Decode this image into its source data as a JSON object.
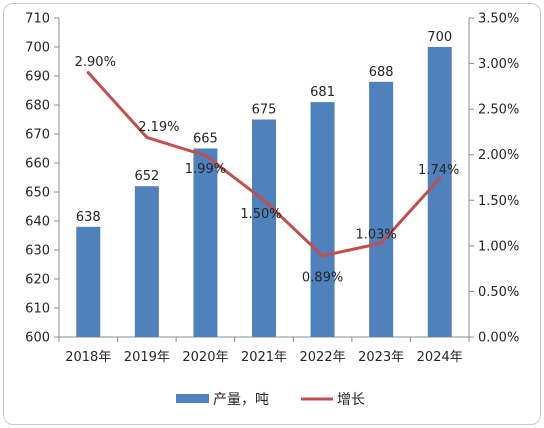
{
  "chart_data": {
    "type": "bar+line",
    "categories": [
      "2018年",
      "2019年",
      "2020年",
      "2021年",
      "2022年",
      "2023年",
      "2024年"
    ],
    "series": [
      {
        "name": "产量，吨",
        "type": "bar",
        "axis": "left",
        "values": [
          638,
          652,
          665,
          675,
          681,
          688,
          700
        ],
        "labels": [
          "638",
          "652",
          "665",
          "675",
          "681",
          "688",
          "700"
        ],
        "color": "#4f81bd"
      },
      {
        "name": "增长",
        "type": "line",
        "axis": "right",
        "values": [
          2.9,
          2.19,
          1.99,
          1.5,
          0.89,
          1.03,
          1.74
        ],
        "labels": [
          "2.90%",
          "2.19%",
          "1.99%",
          "1.50%",
          "0.89%",
          "1.03%",
          "1.74%"
        ],
        "color": "#c0504d"
      }
    ],
    "left_axis": {
      "min": 600,
      "max": 710,
      "ticks": [
        "600",
        "610",
        "620",
        "630",
        "640",
        "650",
        "660",
        "670",
        "680",
        "690",
        "700",
        "710"
      ]
    },
    "right_axis": {
      "min": 0,
      "max": 3.5,
      "ticks": [
        "0.00%",
        "0.50%",
        "1.00%",
        "1.50%",
        "2.00%",
        "2.50%",
        "3.00%",
        "3.50%"
      ]
    },
    "gridlines": false,
    "legend_position": "bottom"
  }
}
